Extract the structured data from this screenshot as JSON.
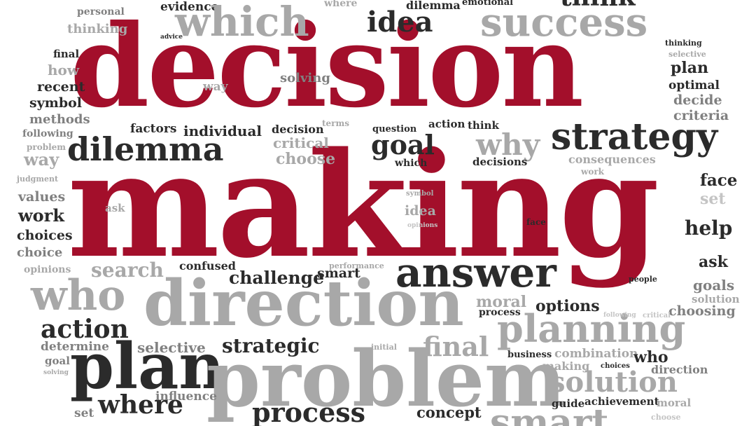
{
  "accent_colors": {
    "red": "#a30f2b",
    "dark": "#2b2b2b",
    "gray": "#808080",
    "light_gray": "#a8a8a8"
  },
  "cloud": {
    "hero": {
      "decision": "decision",
      "making": "making"
    },
    "words": {
      "personal": "personal",
      "thinking": "thinking",
      "evidence": "evidence",
      "which": "which",
      "where": "where",
      "idea": "idea",
      "dilemma": "dilemma",
      "emotional": "emotional",
      "success": "success",
      "think": "think",
      "final": "final",
      "how": "how",
      "recent": "recent",
      "symbol": "symbol",
      "methods": "methods",
      "following": "following",
      "problem": "problem",
      "way": "way",
      "judgment": "judgment",
      "values": "values",
      "work": "work",
      "choices": "choices",
      "choice": "choice",
      "opinions": "opinions",
      "way2": "way",
      "solving": "solving",
      "advice": "advice",
      "selective": "selective",
      "plan": "plan",
      "optimal": "optimal",
      "decide": "decide",
      "criteria": "criteria",
      "factors": "factors",
      "individual": "individual",
      "decision_small": "decision",
      "terms": "terms",
      "question": "question",
      "action": "action",
      "think2": "think",
      "dilemma_big": "dilemma",
      "critical": "critical",
      "choose": "choose",
      "goal": "goal",
      "which2": "which",
      "why": "why",
      "decisions": "decisions",
      "strategy": "strategy",
      "consequences": "consequences",
      "work2": "work",
      "face": "face",
      "set": "set",
      "help": "help",
      "ask": "ask",
      "ask2": "ask",
      "symbol2": "symbol",
      "idea2": "idea",
      "opinions2": "opinions",
      "face2": "face",
      "search": "search",
      "confused": "confused",
      "challenge": "challenge",
      "smart": "smart",
      "performance": "performance",
      "answer": "answer",
      "people": "people",
      "goals": "goals",
      "solution_small": "solution",
      "choosing": "choosing",
      "who": "who",
      "direction": "direction",
      "moral": "moral",
      "process_small": "process",
      "options": "options",
      "action_big": "action",
      "determine": "determine",
      "goal2": "goal",
      "plan_big": "plan",
      "selective2": "selective",
      "strategic": "strategic",
      "final_big": "final",
      "planning": "planning",
      "initial": "initial",
      "business": "business",
      "combination": "combination",
      "who2": "who",
      "making_small": "making",
      "choices2": "choices",
      "direction2": "direction",
      "problem_big": "problem",
      "solution": "solution",
      "set2": "set",
      "where_big": "where",
      "influence": "influence",
      "process": "process",
      "concept": "concept",
      "guide": "guide",
      "achievement": "achievement",
      "moral2": "moral",
      "smart_big": "smart",
      "choose2": "choose",
      "solving2": "solving",
      "following2": "following",
      "critical2": "critical"
    }
  }
}
